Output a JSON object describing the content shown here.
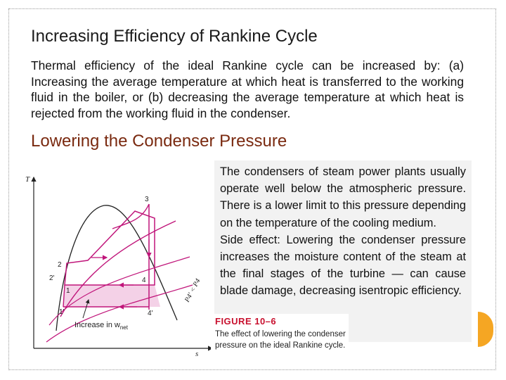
{
  "slide": {
    "title": "Increasing Efficiency of Rankine Cycle",
    "intro": "Thermal efficiency of the ideal Rankine cycle can be increased by: (a) Increasing the average temperature at which heat is transferred to the working fluid in the boiler, or (b) decreasing the average temperature at which heat is rejected from the working fluid in the condenser.",
    "subtitle": "Lowering the Condenser Pressure",
    "accent_color": "#f5a623",
    "subtitle_color": "#7a2a10"
  },
  "diagram": {
    "axis_t": "T",
    "axis_s": "s",
    "points": {
      "p3": "3",
      "p2": "2",
      "p2p": "2'",
      "p1": "1",
      "p1p": "1'",
      "p4": "4",
      "p4p": "4'"
    },
    "pressure_label": "P4' < P4",
    "area_label": "Increase in w",
    "area_subscript": "net"
  },
  "textbox": {
    "para1": "The condensers of steam power plants usually operate well below the atmospheric pressure. There is a lower limit to this pressure depending on the temperature of the cooling medium.",
    "para2": "Side effect: Lowering the condenser pressure increases the moisture content of the steam at the final stages of the turbine — can cause blade damage, decreasing isentropic efficiency."
  },
  "figure": {
    "label": "FIGURE 10–6",
    "caption": "The effect of lowering the condenser pressure on the ideal Rankine cycle."
  }
}
